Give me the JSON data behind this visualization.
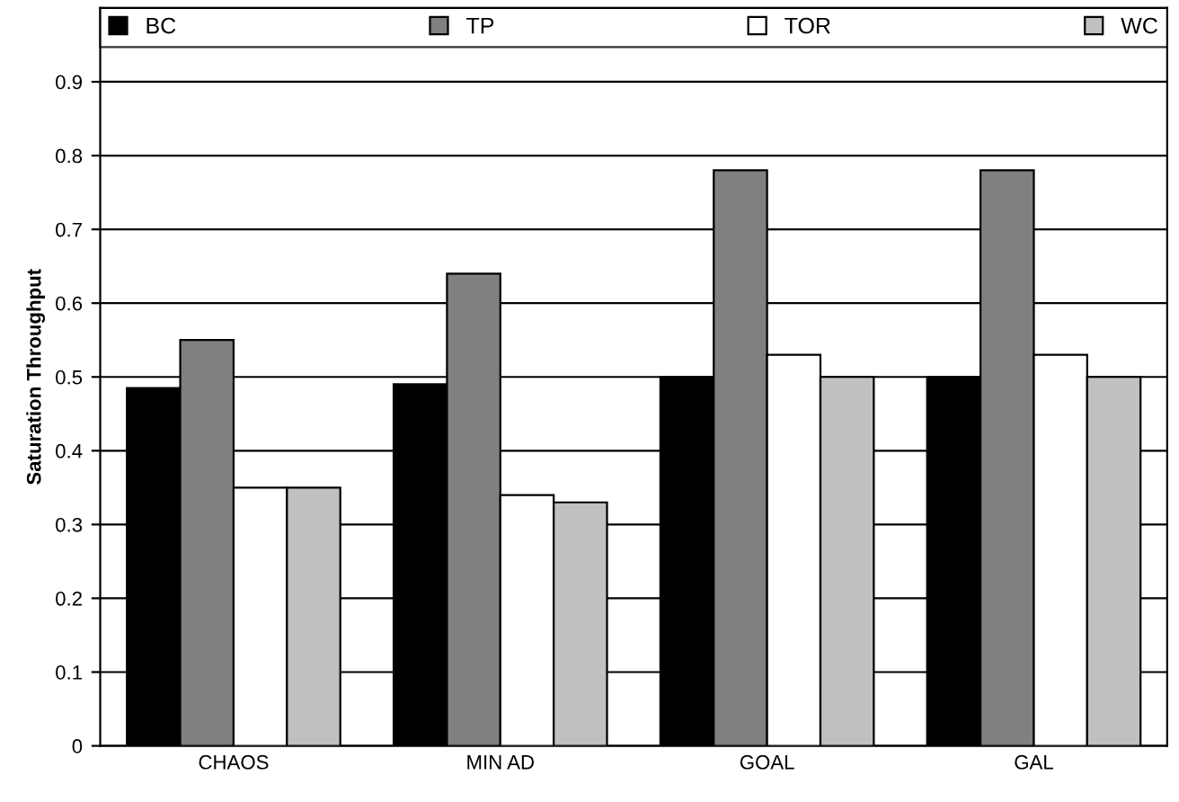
{
  "chart_data": {
    "type": "bar",
    "ylabel": "Saturation Throughput",
    "categories": [
      "CHAOS",
      "MIN AD",
      "GOAL",
      "GAL"
    ],
    "series": [
      {
        "name": "BC",
        "color": "#000000",
        "values": [
          0.485,
          0.49,
          0.5,
          0.5
        ]
      },
      {
        "name": "TP",
        "color": "#808080",
        "values": [
          0.55,
          0.64,
          0.78,
          0.78
        ]
      },
      {
        "name": "TOR",
        "color": "#ffffff",
        "values": [
          0.35,
          0.34,
          0.53,
          0.53
        ]
      },
      {
        "name": "WC",
        "color": "#c0c0c0",
        "values": [
          0.35,
          0.33,
          0.5,
          0.5
        ]
      }
    ],
    "ylim": [
      0,
      1.0
    ],
    "yticks": [
      0,
      0.1,
      0.2,
      0.3,
      0.4,
      0.5,
      0.6,
      0.7,
      0.8,
      0.9
    ],
    "grid": "y",
    "legend": "top"
  }
}
